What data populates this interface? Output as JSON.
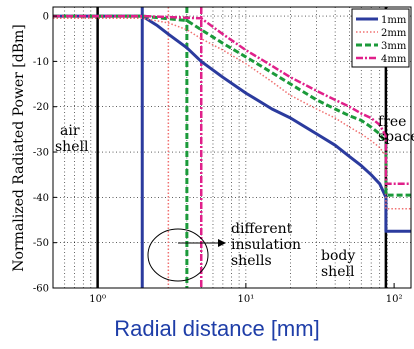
{
  "chart_data": {
    "type": "line",
    "xlabel": "Radial distance [mm]",
    "ylabel": "Normalized Radiated Power [dBm]",
    "xscale": "log",
    "xlim": [
      0.5,
      130
    ],
    "ylim": [
      -60,
      2
    ],
    "xticks": [
      {
        "value": 1,
        "label": "10⁰"
      },
      {
        "value": 10,
        "label": "10¹"
      },
      {
        "value": 100,
        "label": "10²"
      }
    ],
    "yticks": [
      0,
      -10,
      -20,
      -30,
      -40,
      -50,
      -60
    ],
    "grid": "dotted",
    "legend_position": "top-right",
    "series": [
      {
        "name": "1mm",
        "color": "#2b3b9e",
        "dash": "solid",
        "width": 3,
        "x": [
          0.5,
          2,
          2.5,
          3,
          4,
          5,
          7,
          10,
          15,
          20,
          30,
          40,
          50,
          60,
          70,
          80,
          88,
          88,
          130
        ],
        "y": [
          0,
          0,
          -2,
          -4,
          -7,
          -10,
          -13.5,
          -17,
          -20.5,
          -22.5,
          -26,
          -28.5,
          -31,
          -33,
          -35,
          -37,
          -40,
          -47.5,
          -47.5
        ]
      },
      {
        "name": "2mm",
        "color": "#f07070",
        "dash": "dotted",
        "width": 1.5,
        "x": [
          0.5,
          2,
          3,
          4,
          5,
          7,
          10,
          15,
          20,
          30,
          40,
          50,
          60,
          70,
          80,
          88,
          88,
          130
        ],
        "y": [
          -0.5,
          -0.5,
          -1.5,
          -3,
          -5,
          -7.5,
          -10.5,
          -14.5,
          -17.5,
          -20.5,
          -22.5,
          -24.5,
          -26,
          -27.5,
          -29,
          -31,
          -42.5,
          -42.5
        ]
      },
      {
        "name": "3mm",
        "color": "#1b9a3a",
        "dash": "dashed",
        "width": 3,
        "x": [
          0.5,
          2,
          4,
          5,
          7,
          10,
          15,
          20,
          30,
          40,
          50,
          60,
          70,
          80,
          88,
          88,
          130
        ],
        "y": [
          0,
          0,
          -1,
          -3,
          -6,
          -9,
          -12.5,
          -15,
          -18.5,
          -20.5,
          -22,
          -23,
          -24.5,
          -26,
          -28,
          -39.5,
          -39.5
        ]
      },
      {
        "name": "4mm",
        "color": "#e0208a",
        "dash": "dashdot",
        "width": 2.5,
        "x": [
          0.5,
          2,
          5,
          7,
          10,
          15,
          20,
          30,
          40,
          50,
          60,
          70,
          80,
          88,
          88,
          130
        ],
        "y": [
          0,
          0,
          -0.5,
          -4,
          -7.5,
          -11,
          -13.5,
          -16.5,
          -18.5,
          -20,
          -21.5,
          -22.5,
          -24,
          -26.5,
          -37,
          -37
        ]
      }
    ],
    "vertical_lines": [
      {
        "x": 1,
        "color": "#000000",
        "dash": "solid",
        "width": 2.5
      },
      {
        "x": 2,
        "color": "#2b3b9e",
        "dash": "solid",
        "width": 3
      },
      {
        "x": 3,
        "color": "#f07070",
        "dash": "dotted",
        "width": 1.5
      },
      {
        "x": 4,
        "color": "#1b9a3a",
        "dash": "dashed",
        "width": 3
      },
      {
        "x": 5,
        "color": "#e0208a",
        "dash": "dashdot",
        "width": 2.5
      },
      {
        "x": 88,
        "color": "#000000",
        "dash": "solid",
        "width": 2.5
      }
    ],
    "annotations": {
      "air_shell": [
        "air",
        "shell"
      ],
      "free_space": [
        "free",
        "space"
      ],
      "body_shell": [
        "body",
        "shell"
      ],
      "insulation": [
        "different",
        "insulation",
        "shells"
      ]
    }
  }
}
